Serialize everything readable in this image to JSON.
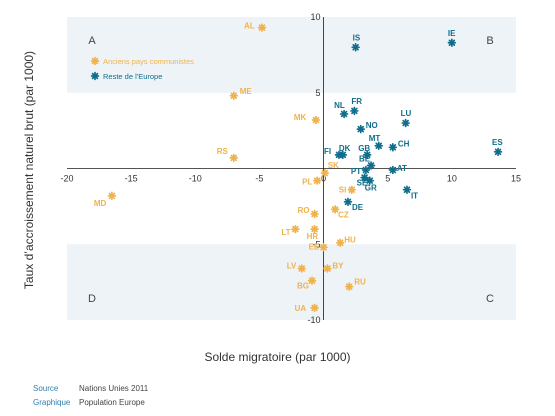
{
  "chart_data": {
    "type": "scatter",
    "xlabel": "Solde migratoire (par 1000)",
    "ylabel": "Taux d’accroissement naturel brut (par 1000)",
    "xlim": [
      -20,
      15
    ],
    "ylim": [
      -10,
      10
    ],
    "x_ticks": [
      "-20",
      "-15",
      "-10",
      "-5",
      "0",
      "5",
      "10",
      "15"
    ],
    "y_ticks": [
      "10",
      "5",
      "-5",
      "-10"
    ],
    "quadrants": [
      "A",
      "B",
      "C",
      "D"
    ],
    "legend_position": "top-left",
    "series": [
      {
        "name": "Anciens pays communistes",
        "color": "#f0b24c",
        "points": [
          {
            "label": "AL",
            "x": -4.8,
            "y": 9.3
          },
          {
            "label": "ME",
            "x": -7.0,
            "y": 4.8
          },
          {
            "label": "MK",
            "x": -0.6,
            "y": 3.2
          },
          {
            "label": "RS",
            "x": -7.0,
            "y": 0.7
          },
          {
            "label": "MD",
            "x": -16.5,
            "y": -1.8
          },
          {
            "label": "SK",
            "x": 0.1,
            "y": -0.3
          },
          {
            "label": "PL",
            "x": -0.5,
            "y": -0.8
          },
          {
            "label": "SI",
            "x": 2.2,
            "y": -1.4
          },
          {
            "label": "RO",
            "x": -0.7,
            "y": -3.0
          },
          {
            "label": "CZ",
            "x": 0.9,
            "y": -2.7
          },
          {
            "label": "HR",
            "x": -0.7,
            "y": -4.0
          },
          {
            "label": "LT",
            "x": -2.2,
            "y": -4.0
          },
          {
            "label": "EE",
            "x": 0.0,
            "y": -5.2
          },
          {
            "label": "HU",
            "x": 1.3,
            "y": -4.9
          },
          {
            "label": "LV",
            "x": -1.7,
            "y": -6.6
          },
          {
            "label": "BY",
            "x": 0.3,
            "y": -6.6
          },
          {
            "label": "BG",
            "x": -0.9,
            "y": -7.4
          },
          {
            "label": "RU",
            "x": 2.0,
            "y": -7.8
          },
          {
            "label": "UA",
            "x": -0.7,
            "y": -9.2
          }
        ]
      },
      {
        "name": "Reste de l'Europe",
        "color": "#0f6e8c",
        "points": [
          {
            "label": "IS",
            "x": 2.5,
            "y": 8.0
          },
          {
            "label": "IE",
            "x": 10.0,
            "y": 8.3
          },
          {
            "label": "NL",
            "x": 1.6,
            "y": 3.6
          },
          {
            "label": "FR",
            "x": 2.4,
            "y": 3.8
          },
          {
            "label": "LU",
            "x": 6.4,
            "y": 3.0
          },
          {
            "label": "NO",
            "x": 2.9,
            "y": 2.6
          },
          {
            "label": "ES",
            "x": 13.6,
            "y": 1.1
          },
          {
            "label": "MT",
            "x": 4.3,
            "y": 1.5
          },
          {
            "label": "CH",
            "x": 5.4,
            "y": 1.4
          },
          {
            "label": "FI",
            "x": 1.2,
            "y": 0.9
          },
          {
            "label": "DK",
            "x": 1.5,
            "y": 0.9
          },
          {
            "label": "GB",
            "x": 3.4,
            "y": 0.9
          },
          {
            "label": "BE",
            "x": 3.7,
            "y": 0.2
          },
          {
            "label": "PT",
            "x": 3.3,
            "y": -0.1
          },
          {
            "label": "AT",
            "x": 5.4,
            "y": -0.1
          },
          {
            "label": "SE",
            "x": 3.2,
            "y": -0.6
          },
          {
            "label": "IT",
            "x": 6.5,
            "y": -1.4
          },
          {
            "label": "GR",
            "x": 3.6,
            "y": -0.8
          },
          {
            "label": "DE",
            "x": 1.9,
            "y": -2.2
          }
        ]
      }
    ]
  },
  "sources": [
    {
      "key": "Source",
      "value": "Nations Unies 2011"
    },
    {
      "key": "Graphique",
      "value": "Population Europe"
    }
  ]
}
